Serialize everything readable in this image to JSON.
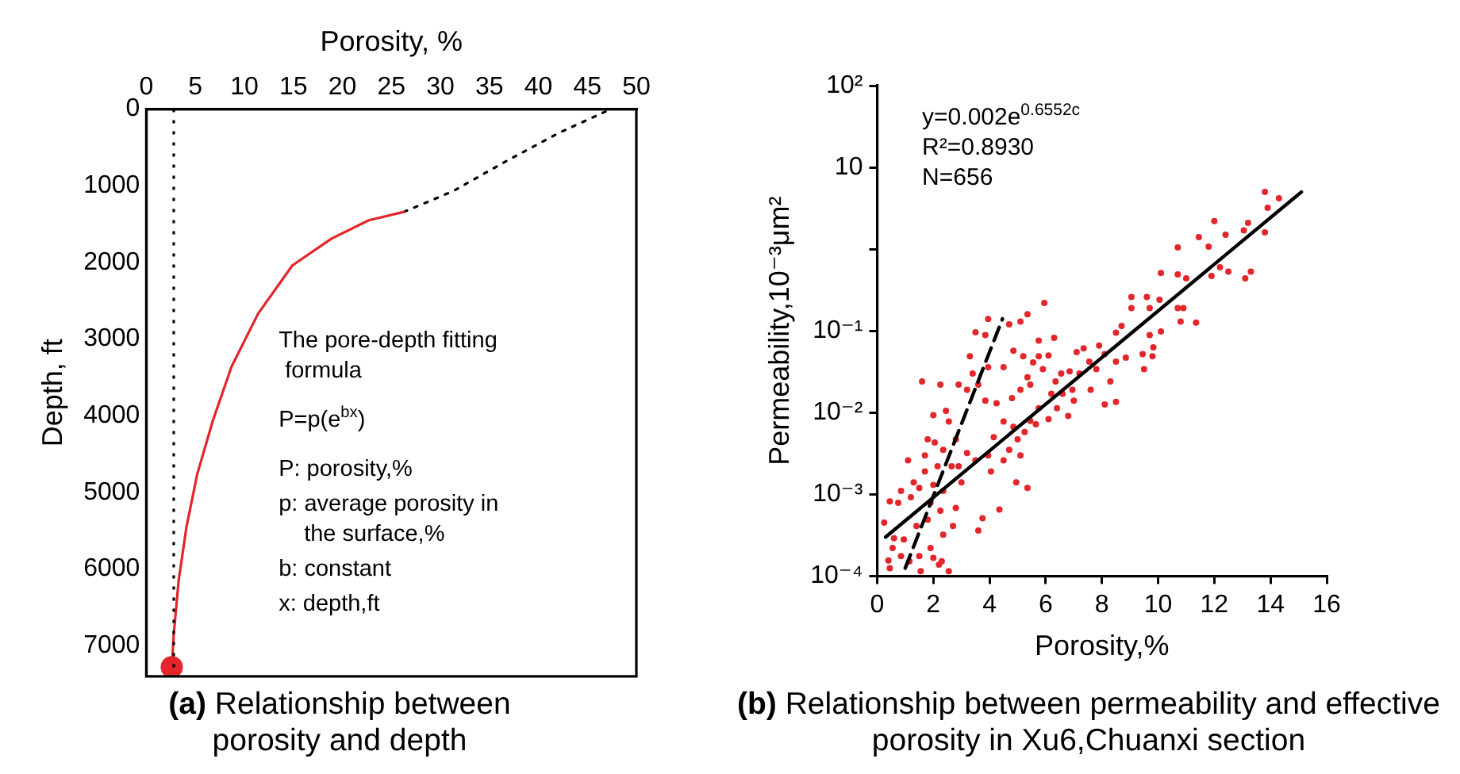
{
  "chart_data": [
    {
      "type": "line",
      "title": "(a) Relationship between porosity and depth",
      "xlabel": "Porosity, %",
      "ylabel": "Depth, ft",
      "xlim": [
        0,
        50
      ],
      "xticks": [
        0,
        5,
        10,
        15,
        20,
        25,
        30,
        35,
        40,
        45,
        50
      ],
      "ylim": [
        7400,
        0
      ],
      "yticks": [
        0,
        1000,
        2000,
        3000,
        4000,
        5000,
        6000,
        7000
      ],
      "grid": false,
      "series": [
        {
          "type": "scatter",
          "color": "#e3262b",
          "marker": "circle",
          "x": [
            2.6
          ],
          "values": [
            7280
          ]
        },
        {
          "color": "#e3262b",
          "x": [
            2.6,
            2.8,
            3.3,
            4.1,
            5.2,
            6.8,
            8.7,
            11.4,
            14.9,
            18.9,
            22.7,
            26.3
          ],
          "values": [
            7280,
            6850,
            6150,
            5450,
            4760,
            4060,
            3360,
            2670,
            2040,
            1690,
            1450,
            1340
          ]
        },
        {
          "color": "#000000",
          "line_style": "dotted",
          "x": [
            26.3,
            31.3,
            36.7,
            42.1,
            47.4
          ],
          "values": [
            1340,
            1070,
            680,
            310,
            0
          ]
        }
      ],
      "ref_lines": [
        {
          "axis": "x",
          "value": 2.8,
          "color": "#000000",
          "line_style": "dotted"
        }
      ],
      "annotations": [
        "The pore-depth fitting formula",
        "P=p(e$^{bx}$)",
        "P: porosity,%",
        "p: average porosity in the surface,%",
        "b: constant",
        "x: depth,ft"
      ]
    },
    {
      "type": "scatter",
      "title": "(b) Relationship between permeability and effective porosity in Xu6,Chuanxi section",
      "xlabel": "Porosity,%",
      "ylabel": "Permeability,10⁻³μm²",
      "log": "y",
      "xlim": [
        0,
        16
      ],
      "xticks": [
        0,
        2,
        4,
        6,
        8,
        10,
        12,
        14,
        16
      ],
      "ylim": [
        0.0001,
        100
      ],
      "yticks": [
        {
          "value": 0.0001,
          "label": "10⁻⁴"
        },
        {
          "value": 0.001,
          "label": "10⁻³"
        },
        {
          "value": 0.01,
          "label": "10⁻²"
        },
        {
          "value": 0.1,
          "label": "10⁻¹"
        },
        {
          "value": 1,
          "label": null
        },
        {
          "value": 10,
          "label": "10"
        },
        {
          "value": 100,
          "label": "10²"
        }
      ],
      "grid": false,
      "series": [
        {
          "type": "line",
          "color": "#000000",
          "x": [
            0.3,
            15.1
          ],
          "values": [
            0.0003,
            5
          ]
        },
        {
          "type": "line",
          "color": "#000000",
          "line_style": "dashed",
          "x": [
            1.0,
            4.46
          ],
          "values": [
            0.000125,
            0.14
          ]
        },
        {
          "color": "#e3262b",
          "marker": "circle",
          "x": [
            13.8,
            14.3,
            13.9,
            13.8,
            13.2,
            13.05,
            12.0,
            11.45,
            12.4,
            11.8,
            10.7,
            12.2,
            11.9,
            12.5,
            13.1,
            13.3,
            10.1,
            10.7,
            11.0,
            9.05,
            9.6,
            10.05,
            10.7,
            10.9,
            9.7,
            9.05,
            10.8,
            11.35,
            8.7,
            8.5,
            9.7,
            10.1,
            9.83,
            9.8,
            9.45,
            9.5,
            8.85,
            8.5,
            8.1,
            7.9,
            7.35,
            7.1,
            7.55,
            7.8,
            8.3,
            7.2,
            6.85,
            6.55,
            6.35,
            6.2,
            6.95,
            7.6,
            8.1,
            8.5,
            7.0,
            6.8,
            6.4,
            6.1,
            5.75,
            5.65,
            5.45,
            5.25,
            4.85,
            5.0,
            4.7,
            4.5,
            5.1,
            5.35,
            4.95,
            4.35,
            3.75,
            3.6,
            4.05,
            3.95,
            4.15,
            4.5,
            4.25,
            3.85,
            4.8,
            5.1,
            5.35,
            5.55,
            5.75,
            5.2,
            4.85,
            4.5,
            3.95,
            3.6,
            3.2,
            3.3,
            3.4,
            3.95,
            3.85,
            3.5,
            4.7,
            5.1,
            5.35,
            5.95,
            5.75,
            6.3,
            6.1,
            5.9,
            5.45,
            6.6,
            1.6,
            2.25,
            2.9,
            2.0,
            2.45,
            2.55,
            1.8,
            2.05,
            1.7,
            2.35,
            2.8,
            3.2,
            3.5,
            2.9,
            2.65,
            2.15,
            1.7,
            1.3,
            1.1,
            1.5,
            2.0,
            2.35,
            3.0,
            2.8,
            2.25,
            1.9,
            1.2,
            0.85,
            0.45,
            0.75,
            0.25,
            1.4,
            1.8,
            2.35,
            2.7,
            0.95,
            0.6,
            0.55,
            0.4,
            0.85,
            1.15,
            1.5,
            1.9,
            2.0,
            2.2,
            2.3,
            2.55,
            0.45,
            1.55
          ],
          "values": [
            5.0,
            4.2,
            3.2,
            1.6,
            2.1,
            1.7,
            2.2,
            1.4,
            1.5,
            1.07,
            1.05,
            0.6,
            0.47,
            0.53,
            0.44,
            0.53,
            0.51,
            0.49,
            0.44,
            0.26,
            0.26,
            0.24,
            0.19,
            0.19,
            0.19,
            0.19,
            0.13,
            0.126,
            0.115,
            0.095,
            0.089,
            0.098,
            0.063,
            0.049,
            0.052,
            0.034,
            0.047,
            0.042,
            0.052,
            0.066,
            0.061,
            0.055,
            0.042,
            0.034,
            0.024,
            0.03,
            0.032,
            0.03,
            0.024,
            0.017,
            0.019,
            0.019,
            0.0126,
            0.0135,
            0.014,
            0.0091,
            0.0113,
            0.0083,
            0.0113,
            0.0072,
            0.0079,
            0.0058,
            0.0067,
            0.0047,
            0.0035,
            0.0026,
            0.003,
            0.0012,
            0.0014,
            0.00065,
            0.00051,
            0.00036,
            0.0019,
            0.003,
            0.005,
            0.0078,
            0.013,
            0.014,
            0.015,
            0.019,
            0.027,
            0.041,
            0.049,
            0.049,
            0.057,
            0.036,
            0.036,
            0.022,
            0.019,
            0.049,
            0.03,
            0.14,
            0.089,
            0.096,
            0.12,
            0.13,
            0.16,
            0.22,
            0.076,
            0.082,
            0.05,
            0.034,
            0.022,
            0.017,
            0.024,
            0.022,
            0.022,
            0.0093,
            0.0105,
            0.0078,
            0.0047,
            0.0043,
            0.003,
            0.0035,
            0.0047,
            0.0032,
            0.0026,
            0.0022,
            0.0022,
            0.0022,
            0.0019,
            0.0014,
            0.0026,
            0.0012,
            0.0013,
            0.0011,
            0.0014,
            0.00068,
            0.00063,
            0.00079,
            0.00092,
            0.0011,
            0.00082,
            0.00079,
            0.00045,
            0.00041,
            0.00049,
            0.00032,
            0.00041,
            0.00028,
            0.00029,
            0.00022,
            0.000155,
            0.000175,
            0.000152,
            0.000175,
            0.00022,
            0.000167,
            0.000138,
            0.000152,
            0.000115,
            0.000125,
            0.000115
          ]
        }
      ],
      "annotations": [
        "y=0.002e$^{0.6552c}$",
        "R²=0.8930",
        "N=656"
      ]
    }
  ]
}
